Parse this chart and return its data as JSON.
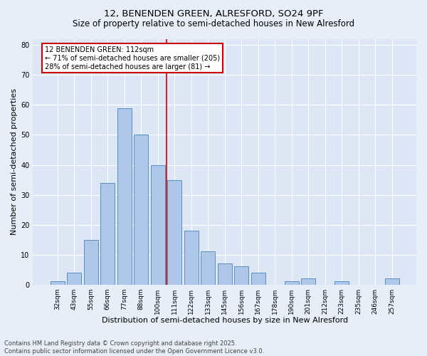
{
  "title1": "12, BENENDEN GREEN, ALRESFORD, SO24 9PF",
  "title2": "Size of property relative to semi-detached houses in New Alresford",
  "xlabel": "Distribution of semi-detached houses by size in New Alresford",
  "ylabel": "Number of semi-detached properties",
  "footnote": "Contains HM Land Registry data © Crown copyright and database right 2025.\nContains public sector information licensed under the Open Government Licence v3.0.",
  "bar_labels": [
    "32sqm",
    "43sqm",
    "55sqm",
    "66sqm",
    "77sqm",
    "88sqm",
    "100sqm",
    "111sqm",
    "122sqm",
    "133sqm",
    "145sqm",
    "156sqm",
    "167sqm",
    "178sqm",
    "190sqm",
    "201sqm",
    "212sqm",
    "223sqm",
    "235sqm",
    "246sqm",
    "257sqm"
  ],
  "bar_values": [
    1,
    4,
    15,
    34,
    59,
    50,
    40,
    35,
    18,
    11,
    7,
    6,
    4,
    0,
    1,
    2,
    0,
    1,
    0,
    0,
    2
  ],
  "bar_color": "#aec6e8",
  "bar_edge_color": "#5a8fc2",
  "property_label": "12 BENENDEN GREEN: 112sqm",
  "pct_smaller": 71,
  "n_smaller": 205,
  "pct_larger": 28,
  "n_larger": 81,
  "vline_bar_index": 7,
  "ylim": [
    0,
    82
  ],
  "yticks": [
    0,
    10,
    20,
    30,
    40,
    50,
    60,
    70,
    80
  ],
  "bg_color": "#e8eef7",
  "plot_bg_color": "#dce6f5",
  "grid_color": "#ffffff",
  "vline_color": "#cc0000",
  "annotation_box_color": "#cc0000",
  "title1_fontsize": 9.5,
  "title2_fontsize": 8.5,
  "tick_fontsize": 6.5,
  "ylabel_fontsize": 8,
  "xlabel_fontsize": 8,
  "footnote_fontsize": 6
}
